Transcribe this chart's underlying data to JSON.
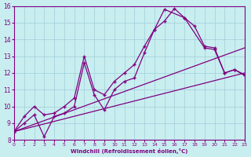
{
  "xlabel": "Windchill (Refroidissement éolien,°C)",
  "bg_color": "#c8eef0",
  "line_color": "#800080",
  "grid_color": "#a0ced8",
  "xlim": [
    0,
    23
  ],
  "ylim": [
    8,
    16
  ],
  "xticks": [
    0,
    1,
    2,
    3,
    4,
    5,
    6,
    7,
    8,
    9,
    10,
    11,
    12,
    13,
    14,
    15,
    16,
    17,
    18,
    19,
    20,
    21,
    22,
    23
  ],
  "yticks": [
    8,
    9,
    10,
    11,
    12,
    13,
    14,
    15,
    16
  ],
  "line1_x": [
    0,
    1,
    2,
    3,
    4,
    5,
    6,
    7,
    8,
    9,
    10,
    11,
    12,
    13,
    14,
    15,
    16,
    17,
    18,
    19,
    20,
    21,
    22,
    23
  ],
  "line1_y": [
    8.5,
    9.4,
    10.0,
    9.5,
    9.6,
    10.0,
    10.5,
    13.0,
    11.0,
    10.7,
    11.5,
    12.0,
    12.5,
    13.6,
    14.6,
    15.1,
    15.85,
    15.3,
    14.8,
    13.6,
    13.5,
    12.0,
    12.2,
    11.9
  ],
  "line2_x": [
    0,
    1,
    2,
    3,
    4,
    5,
    6,
    7,
    8,
    9,
    10,
    11,
    12,
    13,
    14,
    15,
    17,
    19,
    20,
    21,
    22,
    23
  ],
  "line2_y": [
    8.5,
    9.0,
    9.5,
    8.2,
    9.4,
    9.6,
    10.0,
    12.6,
    10.7,
    9.8,
    11.0,
    11.5,
    11.7,
    13.2,
    14.6,
    15.8,
    15.3,
    13.5,
    13.4,
    12.0,
    12.2,
    11.85
  ],
  "line3_x": [
    0,
    23
  ],
  "line3_y": [
    8.5,
    13.5
  ],
  "line4_x": [
    0,
    23
  ],
  "line4_y": [
    8.5,
    12.0
  ]
}
